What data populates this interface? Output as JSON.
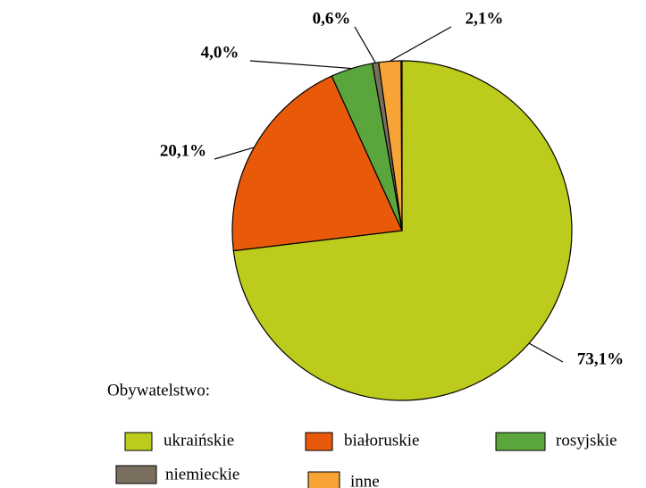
{
  "chart_data": {
    "type": "pie",
    "legend_title": "Obywatelstwo:",
    "categories": [
      "ukraińskie",
      "białoruskie",
      "rosyjskie",
      "niemieckie",
      "inne"
    ],
    "values": [
      73.1,
      20.1,
      4.0,
      0.6,
      2.1
    ],
    "value_labels": [
      "73,1%",
      "20,1%",
      "4,0%",
      "0,6%",
      "2,1%"
    ],
    "colors": [
      "#bccb1c",
      "#e85a0a",
      "#5aa63c",
      "#7a6e5e",
      "#f7a336"
    ]
  }
}
